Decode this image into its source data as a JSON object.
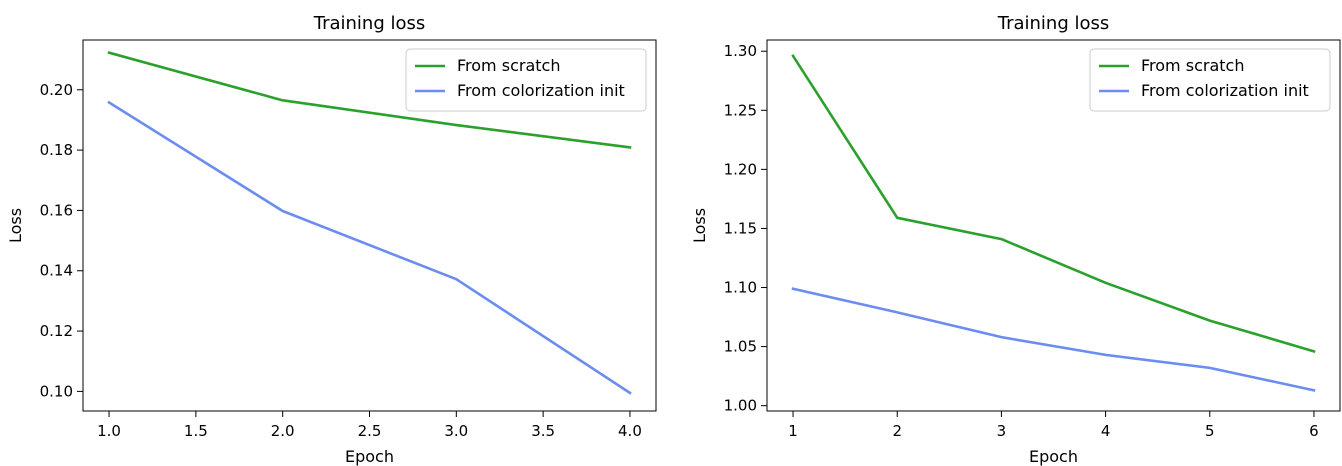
{
  "chart_data": [
    {
      "type": "line",
      "title": "Training loss",
      "xlabel": "Epoch",
      "ylabel": "Loss",
      "xlim": [
        0.85,
        4.15
      ],
      "ylim": [
        0.0935,
        0.2165
      ],
      "xticks": [
        1.0,
        1.5,
        2.0,
        2.5,
        3.0,
        3.5,
        4.0
      ],
      "xtick_labels": [
        "1.0",
        "1.5",
        "2.0",
        "2.5",
        "3.0",
        "3.5",
        "4.0"
      ],
      "yticks": [
        0.1,
        0.12,
        0.14,
        0.16,
        0.18,
        0.2
      ],
      "ytick_labels": [
        "0.10",
        "0.12",
        "0.14",
        "0.16",
        "0.18",
        "0.20"
      ],
      "grid": false,
      "legend": "upper right",
      "series": [
        {
          "name": "From scratch",
          "color": "#2ca02c",
          "x": [
            1,
            2,
            3,
            4
          ],
          "y": [
            0.2123,
            0.1965,
            0.1883,
            0.1809
          ]
        },
        {
          "name": "From colorization init",
          "color": "#6b8cf0",
          "x": [
            1,
            2,
            3,
            4
          ],
          "y": [
            0.1958,
            0.1598,
            0.1372,
            0.0995
          ]
        }
      ]
    },
    {
      "type": "line",
      "title": "Training loss",
      "xlabel": "Epoch",
      "ylabel": "Loss",
      "xlim": [
        0.75,
        6.25
      ],
      "ylim": [
        0.9955,
        1.3095
      ],
      "xticks": [
        1,
        2,
        3,
        4,
        5,
        6
      ],
      "xtick_labels": [
        "1",
        "2",
        "3",
        "4",
        "5",
        "6"
      ],
      "yticks": [
        1.0,
        1.05,
        1.1,
        1.15,
        1.2,
        1.25,
        1.3
      ],
      "ytick_labels": [
        "1.00",
        "1.05",
        "1.10",
        "1.15",
        "1.20",
        "1.25",
        "1.30"
      ],
      "grid": false,
      "legend": "upper right",
      "series": [
        {
          "name": "From scratch",
          "color": "#2ca02c",
          "x": [
            1,
            2,
            3,
            4,
            5,
            6
          ],
          "y": [
            1.296,
            1.159,
            1.141,
            1.104,
            1.072,
            1.046
          ]
        },
        {
          "name": "From colorization init",
          "color": "#6b8cf0",
          "x": [
            1,
            2,
            3,
            4,
            5,
            6
          ],
          "y": [
            1.099,
            1.079,
            1.058,
            1.043,
            1.032,
            1.013
          ]
        }
      ]
    }
  ]
}
